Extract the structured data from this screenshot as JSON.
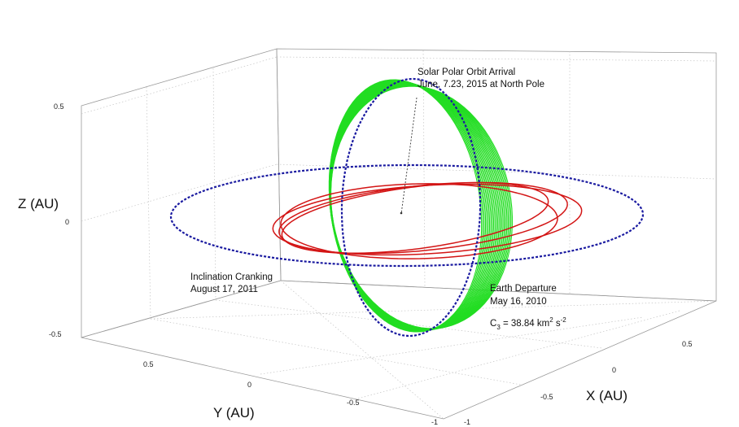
{
  "axes": {
    "xlabel": "X (AU)",
    "ylabel": "Y (AU)",
    "zlabel": "Z (AU)",
    "z_ticks": [
      "0.5",
      "0",
      "-0.5"
    ],
    "y_ticks": [
      "0.5",
      "0",
      "-0.5",
      "-1"
    ],
    "x_ticks": [
      "0.5",
      "0",
      "-0.5",
      "-1"
    ]
  },
  "annotations": {
    "arrival_line1": "Solar Polar Orbit Arrival",
    "arrival_line2": "June, 7.23, 2015 at North Pole",
    "cranking_line1": "Inclination Cranking",
    "cranking_line2": "August 17, 2011",
    "departure_line1": "Earth Departure",
    "departure_line2": "May 16, 2010",
    "c3_base": "C",
    "c3_sub": "3",
    "c3_value": " = 38.84 km",
    "c3_sup1": "2",
    "c3_mid": " s",
    "c3_sup2": "-2"
  },
  "colors": {
    "spiral": "#22dd22",
    "transfer": "#d31515",
    "orbits": "#1a1aa0"
  }
}
